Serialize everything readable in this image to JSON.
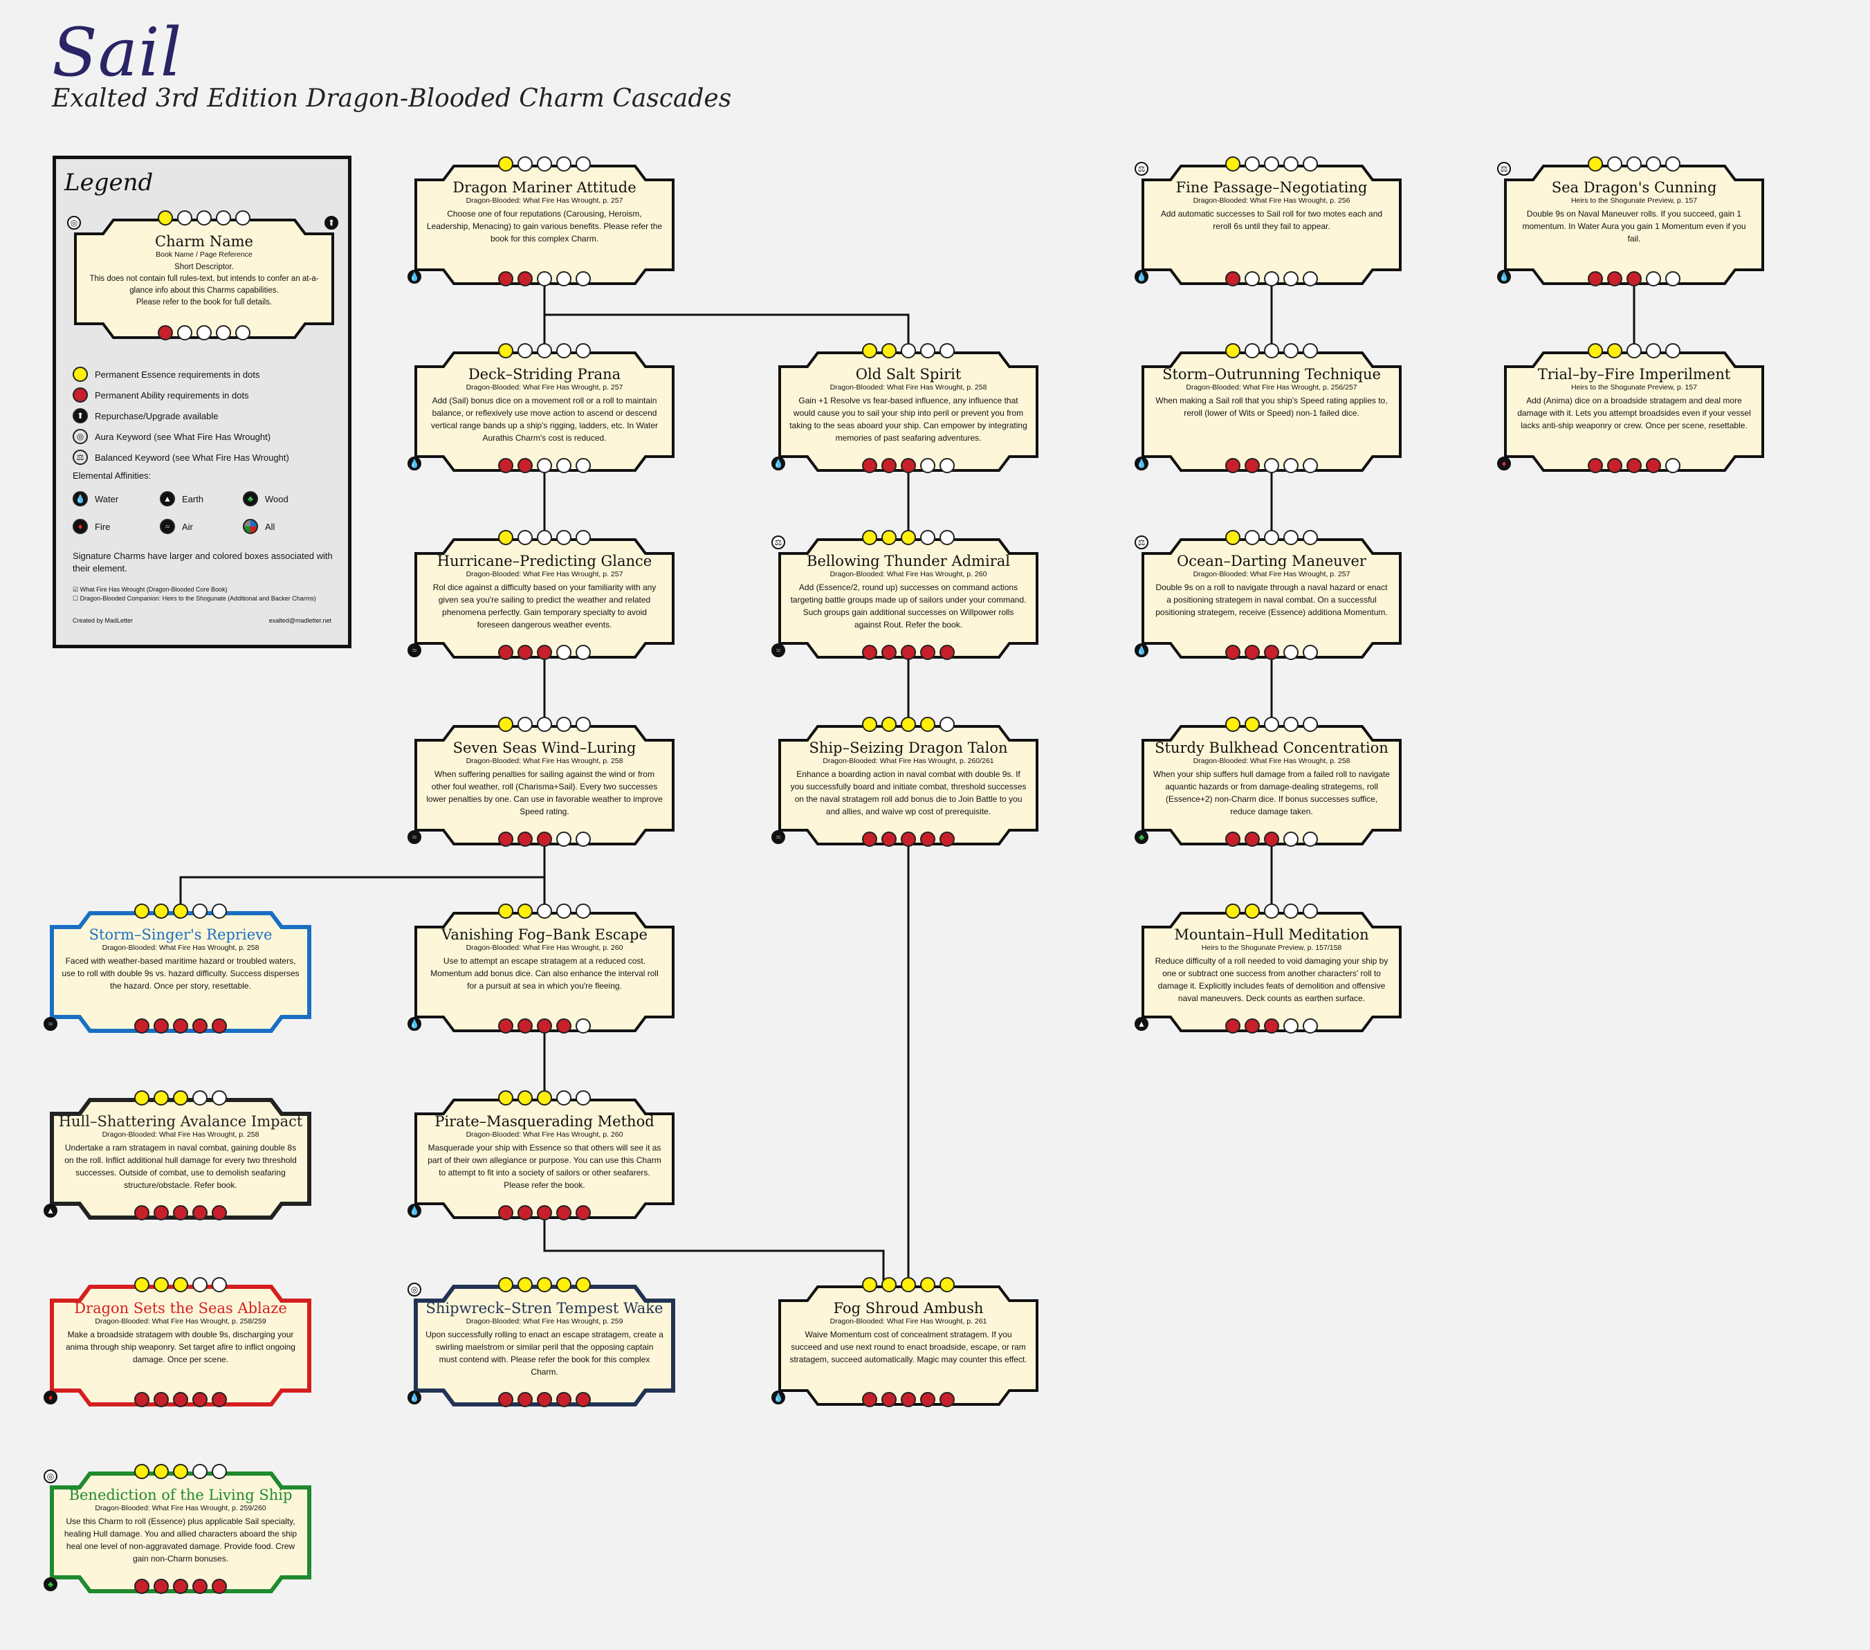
{
  "title": "Sail",
  "subtitle": "Exalted 3rd Edition Dragon-Blooded Charm Cascades",
  "legend": {
    "title": "Legend",
    "sample": {
      "name": "Charm Name",
      "book": "Book Name / Page Reference",
      "desc": "Short Descriptor.\nThis does not contain full rules-text, but intends to confer an at-a-glance info about this Charms capabilities.\nPlease refer to the book for full details.",
      "essence": 1,
      "ability": 1
    },
    "items": [
      {
        "icon": "essence-dot",
        "label": "Permanent Essence requirements in dots"
      },
      {
        "icon": "ability-dot",
        "label": "Permanent Ability requirements in dots"
      },
      {
        "icon": "arrow-up-icon",
        "label": "Repurchase/Upgrade available"
      },
      {
        "icon": "aura-icon",
        "label": "Aura Keyword (see What Fire Has Wrought)"
      },
      {
        "icon": "balanced-icon",
        "label": "Balanced Keyword (see What Fire Has Wrought)"
      }
    ],
    "affinities_title": "Elemental Affinities:",
    "affinities": [
      {
        "icon": "water-icon",
        "label": "Water"
      },
      {
        "icon": "earth-icon",
        "label": "Earth"
      },
      {
        "icon": "wood-icon",
        "label": "Wood"
      },
      {
        "icon": "fire-icon",
        "label": "Fire"
      },
      {
        "icon": "air-icon",
        "label": "Air"
      },
      {
        "icon": "all-icon",
        "label": "All"
      }
    ],
    "signature_note": "Signature Charms have larger and colored boxes associated with their element.",
    "book1": "☑ What Fire Has Wrought (Dragon-Blooded Core Book)",
    "book2": "☐ Dragon-Blooded Companion: Heirs to the Shogunate (Additional and Backer Charms)",
    "credit": "Created by MadLetter",
    "email": "exalted@madletter.net"
  },
  "colors": {
    "water": "#1a6fc4",
    "earth": "#222222",
    "wood": "#1f8a2e",
    "fire": "#d41f1f",
    "air": "#223355",
    "essence": "#ffef0a",
    "ability": "#c8202a",
    "card_fill": "#fdf6d8"
  },
  "charms": [
    {
      "id": "dma",
      "name": "Dragon Mariner Attitude",
      "book": "Dragon-Blooded: What Fire Has Wrought, p. 257",
      "desc": "Choose one of four reputations (Carousing, Heroism, Leadership, Menacing) to gain various benefits. Please refer the book for this complex Charm.",
      "essence": 1,
      "ability": 2,
      "element": "water",
      "keyword": ""
    },
    {
      "id": "dsp",
      "name": "Deck–Striding Prana",
      "book": "Dragon-Blooded: What Fire Has Wrought, p. 257",
      "desc": "Add (Sail) bonus dice on a movement roll or a roll to maintain balance, or reflexively use move action to ascend or descend vertical range bands up a ship's rigging, ladders, etc. In Water Aurathis Charm's cost is reduced.",
      "essence": 1,
      "ability": 2,
      "element": "water",
      "keyword": ""
    },
    {
      "id": "hpg",
      "name": "Hurricane–Predicting Glance",
      "book": "Dragon-Blooded: What Fire Has Wrought, p. 257",
      "desc": "Rol dice against a difficulty based on your familiarity with any given sea you're sailing to predict the weather and related phenomena perfectly. Gain temporary specialty to avoid foreseen dangerous weather events.",
      "essence": 1,
      "ability": 3,
      "element": "air",
      "keyword": ""
    },
    {
      "id": "sswl",
      "name": "Seven Seas Wind–Luring",
      "book": "Dragon-Blooded: What Fire Has Wrought, p. 258",
      "desc": "When suffering penalties for sailing against the wind or from other foul weather, roll (Charisma+Sail). Every two successes lower penalties by one. Can use in favorable weather to improve Speed rating.",
      "essence": 1,
      "ability": 3,
      "element": "air",
      "keyword": ""
    },
    {
      "id": "oss",
      "name": "Old Salt Spirit",
      "book": "Dragon-Blooded: What Fire Has Wrought, p. 258",
      "desc": "Gain +1 Resolve vs fear-based influence, any influence that would cause you to sail your ship into peril or prevent you from taking to the seas aboard your ship. Can empower by integrating memories of past seafaring adventures.",
      "essence": 2,
      "ability": 3,
      "element": "water",
      "keyword": ""
    },
    {
      "id": "bta",
      "name": "Bellowing Thunder Admiral",
      "book": "Dragon-Blooded: What Fire Has Wrought, p. 260",
      "desc": "Add (Essence/2, round up) successes on command actions targeting battle groups made up of sailors under your command. Such groups gain additional successes on Willpower rolls against Rout. Refer the book.",
      "essence": 3,
      "ability": 5,
      "element": "air",
      "keyword": "balanced"
    },
    {
      "id": "ssdt",
      "name": "Ship–Seizing Dragon Talon",
      "book": "Dragon-Blooded: What Fire Has Wrought, p. 260/261",
      "desc": "Enhance a boarding action in naval combat with double 9s. If you successfully board and initiate combat, threshold successes on the naval stratagem roll add bonus die to Join Battle to you and allies, and waive wp cost of prerequisite.",
      "essence": 4,
      "ability": 5,
      "element": "air",
      "keyword": ""
    },
    {
      "id": "vfbe",
      "name": "Vanishing Fog–Bank Escape",
      "book": "Dragon-Blooded: What Fire Has Wrought, p. 260",
      "desc": "Use to attempt an escape stratagem at a reduced cost. Momentum add bonus dice. Can also enhance the interval roll for a pursuit at sea in which you're fleeing.",
      "essence": 2,
      "ability": 4,
      "element": "water",
      "keyword": ""
    },
    {
      "id": "pmm",
      "name": "Pirate–Masquerading Method",
      "book": "Dragon-Blooded: What Fire Has Wrought, p. 260",
      "desc": "Masquerade your ship with Essence so that others will see it as part of their own allegiance or purpose. You can use this Charm to attempt to fit into a society of sailors or other seafarers. Please refer the book.",
      "essence": 3,
      "ability": 5,
      "element": "water",
      "keyword": ""
    },
    {
      "id": "fsa",
      "name": "Fog Shroud Ambush",
      "book": "Dragon-Blooded: What Fire Has Wrought, p. 261",
      "desc": "Waive Momentum cost of concealment stratagem. If you succeed and use next round to enact broadside, escape, or ram stratagem, succeed automatically. Magic may counter this effect.",
      "essence": 5,
      "ability": 5,
      "element": "water",
      "keyword": ""
    },
    {
      "id": "ssr",
      "name": "Storm–Singer's Reprieve",
      "book": "Dragon-Blooded: What Fire Has Wrought, p. 258",
      "desc": "Faced with weather-based maritime hazard or troubled waters, use to roll with double 9s vs. hazard difficulty. Success disperses the hazard. Once per story, resettable.",
      "essence": 3,
      "ability": 5,
      "element": "air",
      "keyword": "",
      "signature": "water"
    },
    {
      "id": "hsai",
      "name": "Hull–Shattering Avalance Impact",
      "book": "Dragon-Blooded: What Fire Has Wrought, p. 258",
      "desc": "Undertake a ram stratagem in naval combat, gaining double 8s on the roll. Inflict additional hull damage for every two threshold successes. Outside of combat, use to demolish seafaring structure/obstacle. Refer book.",
      "essence": 3,
      "ability": 5,
      "element": "earth",
      "keyword": "",
      "signature": "earth"
    },
    {
      "id": "dssa",
      "name": "Dragon Sets the Seas Ablaze",
      "book": "Dragon-Blooded: What Fire Has Wrought, p. 258/259",
      "desc": "Make a broadside stratagem with double 9s, discharging your anima through ship weaponry. Set target afire to inflict ongoing damage. Once per scene.",
      "essence": 3,
      "ability": 5,
      "element": "fire",
      "keyword": "",
      "signature": "fire"
    },
    {
      "id": "sstw",
      "name": "Shipwreck–Stren Tempest Wake",
      "book": "Dragon-Blooded: What Fire Has Wrought, p. 259",
      "desc": "Upon successfully rolling to enact an escape stratagem, create a swirling maelstrom or similar peril that the opposing captain must contend with. Please refer the book for this complex Charm.",
      "essence": 5,
      "ability": 5,
      "element": "water",
      "keyword": "aura",
      "signature": "air"
    },
    {
      "id": "blts",
      "name": "Benediction of the Living Ship",
      "book": "Dragon-Blooded: What Fire Has Wrought, p. 259/260",
      "desc": "Use this Charm to roll (Essence) plus applicable Sail specialty, healing Hull damage. You and allied characters aboard the ship heal one level of non-aggravated damage. Provide food. Crew gain non-Charm bonuses.",
      "essence": 3,
      "ability": 5,
      "element": "wood",
      "keyword": "aura",
      "signature": "wood"
    },
    {
      "id": "fpn",
      "name": "Fine Passage–Negotiating",
      "book": "Dragon-Blooded: What Fire Has Wrought, p. 256",
      "desc": "Add automatic successes to Sail roll for two motes each and reroll 6s until they fail to appear.",
      "essence": 1,
      "ability": 1,
      "element": "water",
      "keyword": "balanced"
    },
    {
      "id": "sot",
      "name": "Storm–Outrunning Technique",
      "book": "Dragon-Blooded: What Fire Has Wrought, p. 256/257",
      "desc": "When making a Sail roll that you ship's Speed rating applies to, reroll (lower of Wits or Speed) non-1 failed dice.",
      "essence": 1,
      "ability": 2,
      "element": "water",
      "keyword": ""
    },
    {
      "id": "odm",
      "name": "Ocean–Darting Maneuver",
      "book": "Dragon-Blooded: What Fire Has Wrought, p. 257",
      "desc": "Double 9s on a roll to navigate through a naval hazard or enact a positioning strategem in naval combat. On a successful positioning strategem, receive (Essence) additiona Momentum.",
      "essence": 1,
      "ability": 3,
      "element": "water",
      "keyword": "balanced"
    },
    {
      "id": "sbc",
      "name": "Sturdy Bulkhead Concentration",
      "book": "Dragon-Blooded: What Fire Has Wrought, p. 258",
      "desc": "When your ship suffers hull damage from a failed roll to navigate aquantic hazards or from damage-dealing strategems, roll (Essence+2) non-Charm dice. If bonus successes suffice, reduce damage taken.",
      "essence": 2,
      "ability": 3,
      "element": "wood",
      "keyword": ""
    },
    {
      "id": "mhm",
      "name": "Mountain–Hull Meditation",
      "book": "Heirs to the Shogunate Preview, p. 157/158",
      "desc": "Reduce difficulty of a roll needed to void damaging your ship by one or subtract one success from another characters' roll to damage it. Explicitly includes feats of demolition and offensive naval maneuvers. Deck counts as earthen surface.",
      "essence": 2,
      "ability": 3,
      "element": "earth",
      "keyword": ""
    },
    {
      "id": "sdc",
      "name": "Sea Dragon's Cunning",
      "book": "Heirs to the Shogunate Preview, p. 157",
      "desc": "Double 9s on Naval Maneuver rolls. If you succeed, gain 1 momentum. In Water Aura you gain 1 Momentum even if you fail.",
      "essence": 1,
      "ability": 3,
      "element": "water",
      "keyword": "balanced"
    },
    {
      "id": "tbfi",
      "name": "Trial–by–Fire Imperilment",
      "book": "Heirs to the Shogunate Preview, p. 157",
      "desc": "Add (Anima) dice on a broadside stratagem and deal more damage with it. Lets you attempt broadsides even if your vessel lacks anti-ship weaponry or crew. Once per scene, resettable.",
      "essence": 2,
      "ability": 4,
      "element": "fire",
      "keyword": ""
    }
  ]
}
